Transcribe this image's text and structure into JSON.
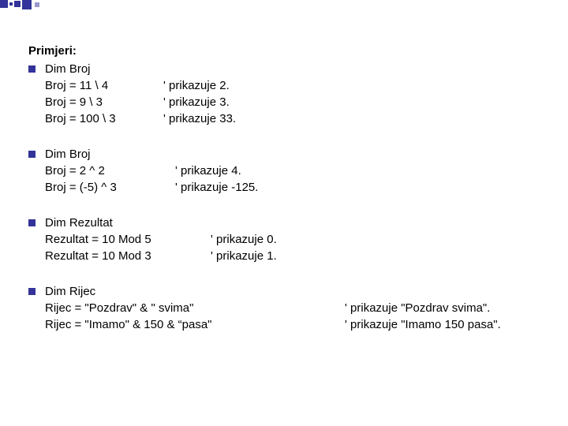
{
  "deco": {
    "squares": [
      {
        "w": 10,
        "h": 10,
        "color": "#333399",
        "gap": 0
      },
      {
        "w": 4,
        "h": 4,
        "color": "#333399",
        "gap": 2
      },
      {
        "w": 8,
        "h": 8,
        "color": "#333399",
        "gap": 2
      },
      {
        "w": 12,
        "h": 12,
        "color": "#333399",
        "gap": 2
      },
      {
        "w": 6,
        "h": 6,
        "color": "#9999cc",
        "gap": 4
      }
    ]
  },
  "title": "Primjeri:",
  "blocks": [
    {
      "lines": [
        {
          "c1": "Dim Broj",
          "c2": ""
        },
        {
          "c1": "Broj = 11 \\ 4",
          "c2": "' prikazuje 2."
        },
        {
          "c1": "Broj = 9 \\ 3",
          "c2": "' prikazuje 3."
        },
        {
          "c1": "Broj = 100 \\ 3",
          "c2": "' prikazuje 33."
        }
      ],
      "col1w": 150
    },
    {
      "lines": [
        {
          "c1": "Dim Broj",
          "c2": ""
        },
        {
          "c1": "Broj = 2 ^ 2",
          "c2": "' prikazuje 4."
        },
        {
          "c1": "Broj = (-5) ^ 3",
          "c2": "' prikazuje -125."
        }
      ],
      "col1w": 165
    },
    {
      "lines": [
        {
          "c1": "Dim Rezultat",
          "c2": ""
        },
        {
          "c1": "Rezultat = 10 Mod 5",
          "c2": "' prikazuje 0."
        },
        {
          "c1": "Rezultat = 10 Mod 3",
          "c2": "' prikazuje 1."
        }
      ],
      "col1w": 210
    },
    {
      "lines": [
        {
          "c1": "Dim Rijec",
          "c2": ""
        },
        {
          "c1": "Rijec = \"Pozdrav\" & \" svima\"",
          "c2": "' prikazuje \"Pozdrav svima\"."
        },
        {
          "c1": "Rijec = \"Imamo\" & 150 & “pasa\"",
          "c2": "' prikazuje \"Imamo 150 pasa\"."
        }
      ],
      "col1w": 380
    }
  ],
  "colors": {
    "bullet": "#333399",
    "text": "#000000",
    "bg": "#ffffff"
  }
}
